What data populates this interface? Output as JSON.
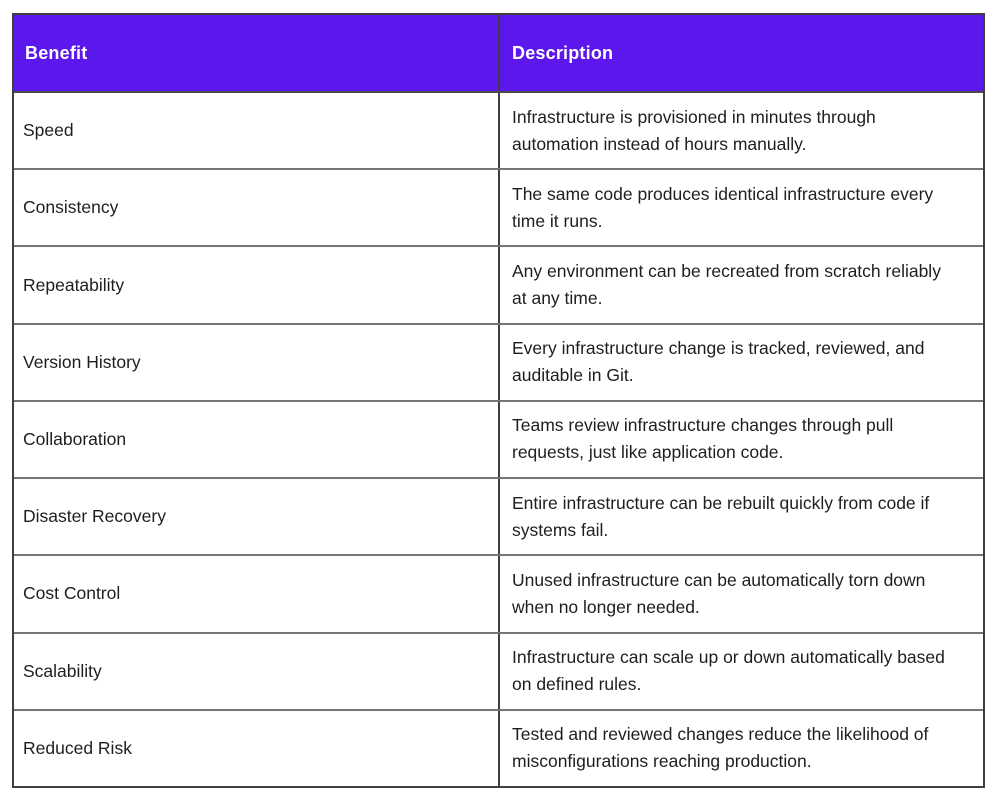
{
  "chart_data": {
    "type": "table",
    "columns": [
      "Benefit",
      "Description"
    ],
    "rows": [
      {
        "benefit": "Speed",
        "description": "Infrastructure is provisioned in minutes through automation instead of hours manually."
      },
      {
        "benefit": "Consistency",
        "description": "The same code produces identical infrastructure every time it runs."
      },
      {
        "benefit": "Repeatability",
        "description": "Any environment can be recreated from scratch reliably at any time."
      },
      {
        "benefit": "Version History",
        "description": "Every infrastructure change is tracked, reviewed, and auditable in Git."
      },
      {
        "benefit": "Collaboration",
        "description": "Teams review infrastructure changes through pull requests, just like application code."
      },
      {
        "benefit": "Disaster Recovery",
        "description": "Entire infrastructure can be rebuilt quickly from code if systems fail."
      },
      {
        "benefit": "Cost Control",
        "description": "Unused infrastructure can be automatically torn down when no longer needed."
      },
      {
        "benefit": "Scalability",
        "description": "Infrastructure can scale up or down automatically based on defined rules."
      },
      {
        "benefit": "Reduced Risk",
        "description": "Tested and reviewed changes reduce the likelihood of misconfigurations reaching production."
      }
    ],
    "layout": {
      "header_position": "top",
      "grid": "on",
      "column_split_ratio": 0.5
    }
  },
  "colors": {
    "header_bg": "#5b17ec",
    "header_text": "#ffffff",
    "body_text": "#1e1e1e",
    "outer_border": "#3f3f3f",
    "row_divider": "#757575",
    "page_bg": "#ffffff"
  }
}
